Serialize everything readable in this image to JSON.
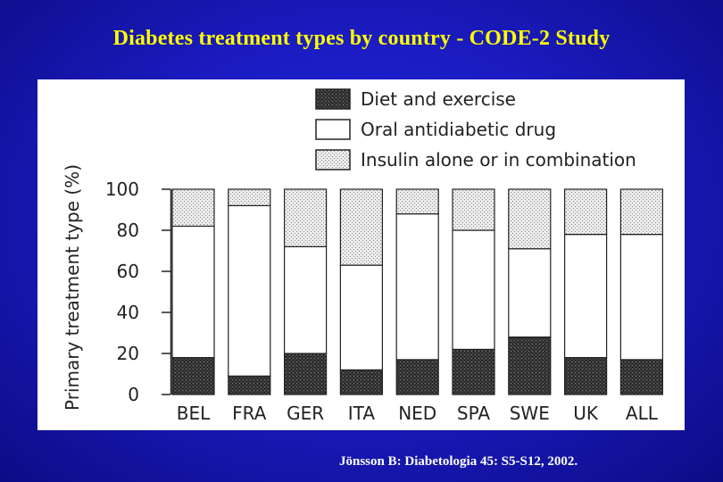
{
  "slide": {
    "title": "Diabetes treatment types by country  -  CODE-2 Study",
    "citation": "Jönsson B: Diabetologia 45: S5-S12, 2002."
  },
  "chart_data": {
    "type": "bar",
    "stacked": true,
    "title": "Diabetes treatment types by country  -  CODE-2 Study",
    "xlabel": "",
    "ylabel": "Primary treatment type (%)",
    "ylim": [
      0,
      100
    ],
    "yticks": [
      "0",
      "20",
      "40",
      "60",
      "80",
      "100"
    ],
    "categories": [
      "BEL",
      "FRA",
      "GER",
      "ITA",
      "NED",
      "SPA",
      "SWE",
      "UK",
      "ALL"
    ],
    "legend_position": "top",
    "series": [
      {
        "name": "Diet and exercise",
        "values": [
          18,
          9,
          20,
          12,
          17,
          22,
          28,
          18,
          17
        ]
      },
      {
        "name": "Oral antidiabetic drug",
        "values": [
          64,
          83,
          52,
          51,
          71,
          58,
          43,
          60,
          61
        ]
      },
      {
        "name": "Insulin alone or in combination",
        "values": [
          18,
          8,
          28,
          37,
          12,
          20,
          29,
          22,
          22
        ]
      }
    ],
    "colors": {
      "diet": "#2b2b2b",
      "oral": "#ffffff",
      "insulin": "#d0d0d0",
      "axis": "#222222"
    }
  }
}
